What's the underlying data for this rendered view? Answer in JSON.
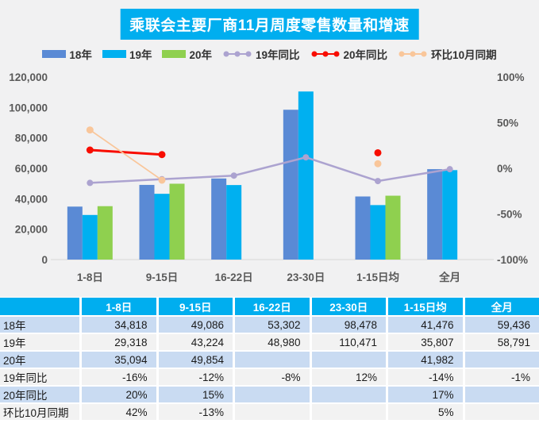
{
  "chart_data": {
    "type": "bar",
    "subtype": "grouped-bar-with-lines",
    "title": "乘联会主要厂商11月周度零售数量和增速",
    "categories": [
      "1-8日",
      "9-15日",
      "16-22日",
      "23-30日",
      "1-15日均",
      "全月"
    ],
    "bar_series": [
      {
        "name": "18年",
        "color": "#5A8AD5",
        "values": [
          34818,
          49086,
          53302,
          98478,
          41476,
          59436
        ]
      },
      {
        "name": "19年",
        "color": "#00B0F0",
        "values": [
          29318,
          43224,
          48980,
          110471,
          35807,
          58791
        ]
      },
      {
        "name": "20年",
        "color": "#8FD04F",
        "values": [
          35094,
          49854,
          null,
          null,
          41982,
          null
        ]
      }
    ],
    "line_series": [
      {
        "name": "19年同比",
        "color": "#ACA3D0",
        "axis": "right",
        "stroke_width": 2.5,
        "marker_r": 4,
        "values": [
          -16,
          -12,
          -8,
          12,
          -14,
          -1
        ]
      },
      {
        "name": "20年同比",
        "color": "#F80D00",
        "axis": "right",
        "stroke_width": 3,
        "marker_r": 4.5,
        "values": [
          20,
          15,
          null,
          null,
          17,
          null
        ]
      },
      {
        "name": "环比10月同期",
        "color": "#F9C69A",
        "axis": "right",
        "stroke_width": 1.75,
        "marker_r": 4.5,
        "values": [
          42,
          -13,
          null,
          null,
          5,
          null
        ]
      }
    ],
    "left_axis": {
      "min": 0,
      "max": 120000,
      "step": 20000,
      "tick_labels": [
        "0",
        "20,000",
        "40,000",
        "60,000",
        "80,000",
        "100,000",
        "120,000"
      ]
    },
    "right_axis": {
      "min": -100,
      "max": 100,
      "step": 50,
      "tick_labels": [
        "-100%",
        "-50%",
        "0%",
        "50%",
        "100%"
      ]
    },
    "legend_position": "top",
    "grid": false
  },
  "table": {
    "header": [
      "",
      "1-8日",
      "9-15日",
      "16-22日",
      "23-30日",
      "1-15日均",
      "全月"
    ],
    "rows": [
      {
        "label": "18年",
        "cells": [
          "34,818",
          "49,086",
          "53,302",
          "98,478",
          "41,476",
          "59,436"
        ]
      },
      {
        "label": "19年",
        "cells": [
          "29,318",
          "43,224",
          "48,980",
          "110,471",
          "35,807",
          "58,791"
        ]
      },
      {
        "label": "20年",
        "cells": [
          "35,094",
          "49,854",
          "",
          "",
          "41,982",
          ""
        ]
      },
      {
        "label": "19年同比",
        "cells": [
          "-16%",
          "-12%",
          "-8%",
          "12%",
          "-14%",
          "-1%"
        ]
      },
      {
        "label": "20年同比",
        "cells": [
          "20%",
          "15%",
          "",
          "",
          "17%",
          ""
        ]
      },
      {
        "label": "环比10月同期",
        "cells": [
          "42%",
          "-13%",
          "",
          "",
          "5%",
          ""
        ]
      }
    ]
  },
  "colors": {
    "accent_cyan": "#00AEEF",
    "row_blue": "#C9DBF2",
    "row_light": "#F2F2F2",
    "chart_bg": "#F1F1F2",
    "axis_text": "#595959",
    "zero_line": "#D6D6D6"
  }
}
